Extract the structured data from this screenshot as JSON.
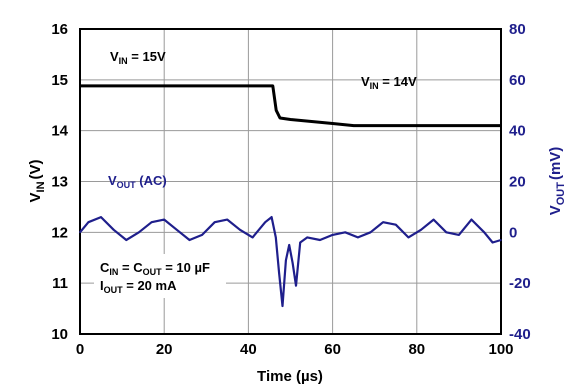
{
  "chart_data": {
    "type": "line",
    "xlabel": "Time (µs)",
    "x_ticks": [
      "0",
      "20",
      "40",
      "60",
      "80",
      "100"
    ],
    "xlim": [
      0,
      100
    ],
    "y_left": {
      "label_main": "V",
      "label_sub": "IN",
      "label_unit": "(V)",
      "ylim": [
        10,
        16
      ],
      "ticks": [
        "10",
        "11",
        "12",
        "13",
        "14",
        "15",
        "16"
      ],
      "color": "#000000"
    },
    "y_right": {
      "label_main": "V",
      "label_sub": "OUT",
      "label_unit": "(mV)",
      "ylim": [
        -40,
        80
      ],
      "ticks": [
        "-40",
        "-20",
        "0",
        "20",
        "40",
        "60",
        "80"
      ],
      "color": "#1f1f8c"
    },
    "grid": true,
    "series": [
      {
        "axis": "left",
        "color": "#000000",
        "x": [
          0,
          5,
          10,
          15,
          20,
          25,
          30,
          35,
          40,
          45,
          45.8,
          46.6,
          47.5,
          50,
          55,
          60,
          65,
          70,
          75,
          80,
          85,
          90,
          95,
          100
        ],
        "y": [
          14.88,
          14.88,
          14.88,
          14.88,
          14.88,
          14.88,
          14.88,
          14.88,
          14.88,
          14.88,
          14.88,
          14.4,
          14.25,
          14.22,
          14.18,
          14.14,
          14.1,
          14.1,
          14.1,
          14.1,
          14.1,
          14.1,
          14.1,
          14.1
        ]
      },
      {
        "axis": "right",
        "color": "#1f1f8c",
        "x": [
          0,
          2,
          5,
          8,
          11,
          14,
          17,
          20,
          23,
          26,
          29,
          32,
          35,
          38,
          41,
          44,
          45.5,
          46.5,
          47.3,
          48.1,
          48.9,
          49.7,
          50.5,
          51.3,
          52.3,
          54,
          57,
          60,
          63,
          66,
          69,
          72,
          75,
          78,
          81,
          84,
          87,
          90,
          93,
          96,
          98,
          100
        ],
        "y": [
          0,
          4,
          6,
          1,
          -3,
          0,
          4,
          5,
          1,
          -3,
          -1,
          4,
          5,
          1,
          -2,
          4,
          6,
          -2,
          -16,
          -29,
          -11,
          -5,
          -12,
          -21,
          -4,
          -2,
          -3,
          -1,
          0,
          -2,
          0,
          4,
          3,
          -2,
          1,
          5,
          0,
          -1,
          5,
          0,
          -4,
          -3
        ]
      }
    ],
    "annotations": [
      {
        "main": "V",
        "sub": "IN",
        "tail": " = 15V"
      },
      {
        "main": "V",
        "sub": "IN",
        "tail": " = 14V"
      },
      {
        "main": "V",
        "sub": "OUT",
        "tail": " (AC)"
      },
      {
        "line1_a": "C",
        "line1_a_sub": "IN",
        "line1_b": " = C",
        "line1_b_sub": "OUT",
        "line1_c": " = 10 µF",
        "line2_a": "I",
        "line2_a_sub": "OUT",
        "line2_b": " = 20 mA"
      }
    ]
  }
}
